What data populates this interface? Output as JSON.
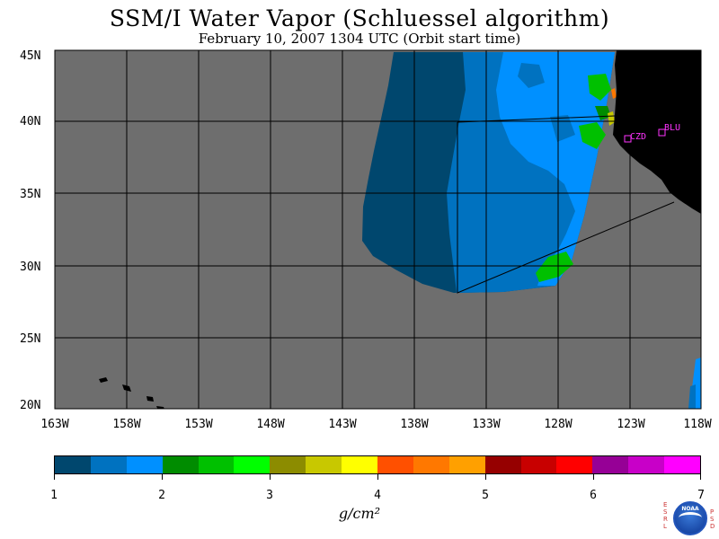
{
  "title": "SSM/I Water Vapor (Schluessel algorithm)",
  "subtitle": "February 10, 2007  1304 UTC  (Orbit start time)",
  "lat_labels": [
    "45N",
    "40N",
    "35N",
    "30N",
    "25N",
    "20N"
  ],
  "lon_labels": [
    "163W",
    "158W",
    "153W",
    "148W",
    "143W",
    "138W",
    "133W",
    "128W",
    "123W",
    "118W"
  ],
  "stations": [
    {
      "name": "CZD",
      "lon": -123.0,
      "lat": 38.6
    },
    {
      "name": "BLU",
      "lon": -120.8,
      "lat": 39.3
    }
  ],
  "colorbar": {
    "ticks": [
      "1",
      "2",
      "3",
      "4",
      "5",
      "6",
      "7"
    ],
    "colors": [
      "#00476e",
      "#0072c0",
      "#0090ff",
      "#008c00",
      "#00c000",
      "#00ff00",
      "#8c8c00",
      "#c8c800",
      "#ffff00",
      "#ff5000",
      "#ff7800",
      "#ffa000",
      "#960000",
      "#c80000",
      "#ff0000",
      "#960096",
      "#c800c8",
      "#ff00ff"
    ],
    "unit": "g/cm²"
  },
  "logo": {
    "name": "NOAA",
    "left_letters": "ESRL",
    "right_letters": "PSD"
  },
  "map": {
    "lon_range": [
      -163,
      -118
    ],
    "lat_range": [
      19.5,
      45
    ],
    "background_color": "#6e6e6e",
    "land_color": "#000000",
    "grid": true
  }
}
